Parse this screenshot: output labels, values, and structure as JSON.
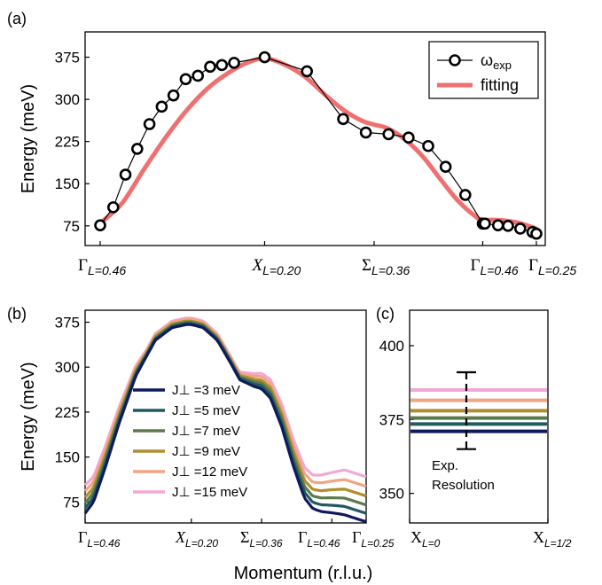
{
  "chart_data": [
    {
      "panel_label": "(a)",
      "type": "line",
      "ylabel": "Energy (meV)",
      "ylim": [
        40,
        420
      ],
      "yticks": [
        75,
        150,
        225,
        300,
        375
      ],
      "x_range": [
        0,
        1
      ],
      "xtick_labels": [
        {
          "main": "Γ",
          "sub": "L=0.46",
          "x": 0.0
        },
        {
          "main": "X",
          "sub": "L=0.20",
          "x": 0.377
        },
        {
          "main": "Σ",
          "sub": "L=0.36",
          "x": 0.628
        },
        {
          "main": "Γ",
          "sub": "L=0.46",
          "x": 0.877
        },
        {
          "main": "Γ",
          "sub": "L=0.25",
          "x": 1.0
        }
      ],
      "legend": {
        "placement": "top-right",
        "entries": [
          {
            "label": "ω",
            "sub": "exp"
          },
          {
            "label": "fitting"
          }
        ]
      },
      "series": [
        {
          "name": "ω_exp",
          "style": "line-with-open-circles",
          "color": "#000000",
          "x": [
            0.0,
            0.03,
            0.058,
            0.085,
            0.113,
            0.141,
            0.168,
            0.196,
            0.224,
            0.252,
            0.279,
            0.307,
            0.377,
            0.474,
            0.557,
            0.609,
            0.661,
            0.707,
            0.752,
            0.792,
            0.837,
            0.877,
            0.882,
            0.912,
            0.935,
            0.963,
            0.991,
            1.0
          ],
          "values": [
            76,
            108,
            166,
            212,
            256,
            287,
            307,
            336,
            342,
            358,
            361,
            365,
            375,
            350,
            265,
            241,
            238,
            232,
            217,
            180,
            130,
            79,
            79,
            76,
            75,
            70,
            64,
            61
          ]
        },
        {
          "name": "fitting",
          "style": "thick-line",
          "color": "#f07070",
          "x": [
            0.0,
            0.05,
            0.1,
            0.15,
            0.2,
            0.25,
            0.3,
            0.34,
            0.377,
            0.42,
            0.47,
            0.52,
            0.56,
            0.6,
            0.628,
            0.66,
            0.7,
            0.74,
            0.78,
            0.82,
            0.86,
            0.877,
            0.92,
            0.96,
            1.0
          ],
          "values": [
            80,
            115,
            175,
            232,
            282,
            322,
            350,
            366,
            373,
            363,
            340,
            305,
            280,
            262,
            255,
            248,
            228,
            198,
            158,
            120,
            92,
            86,
            85,
            80,
            70
          ]
        }
      ]
    },
    {
      "panel_label": "(b)",
      "type": "line",
      "ylabel": "Energy (meV)",
      "xlabel": "Momentum (r.l.u.)",
      "ylim": [
        40,
        395
      ],
      "yticks": [
        75,
        150,
        225,
        300,
        375
      ],
      "x_range": [
        0,
        1
      ],
      "xtick_labels": [
        {
          "main": "Γ",
          "sub": "L=0.46",
          "x": 0.0
        },
        {
          "main": "X",
          "sub": "L=0.20",
          "x": 0.378
        },
        {
          "main": "Σ",
          "sub": "L=0.36",
          "x": 0.628
        },
        {
          "main": "Γ",
          "sub": "L=0.46",
          "x": 0.878
        },
        {
          "main": "Γ",
          "sub": "L=0.25",
          "x": 1.0
        }
      ],
      "legend": {
        "placement": "lower-left"
      },
      "base_curve": {
        "x": [
          0.0,
          0.03,
          0.07,
          0.12,
          0.18,
          0.25,
          0.31,
          0.36,
          0.378,
          0.42,
          0.47,
          0.52,
          0.55,
          0.6,
          0.628,
          0.66,
          0.7,
          0.74,
          0.78,
          0.81,
          0.84,
          0.878,
          0.92,
          0.96,
          1.0
        ],
        "values": [
          56,
          75,
          130,
          205,
          285,
          345,
          366,
          371,
          371,
          366,
          345,
          305,
          279,
          268,
          264,
          248,
          200,
          136,
          82,
          64,
          59,
          57,
          54,
          48,
          42
        ]
      },
      "series": [
        {
          "name": "J⊥ =3 meV",
          "color": "#0e1a5c",
          "offset": 0,
          "tail_extra": 0
        },
        {
          "name": "J⊥ =5 meV",
          "color": "#1f5a5e",
          "offset": 2,
          "tail_extra": 12
        },
        {
          "name": "J⊥ =7 meV",
          "color": "#5d7a4c",
          "offset": 4,
          "tail_extra": 24
        },
        {
          "name": "J⊥ =9 meV",
          "color": "#b08e2c",
          "offset": 6,
          "tail_extra": 37
        },
        {
          "name": "J⊥ =12 meV",
          "color": "#f0a585",
          "offset": 9,
          "tail_extra": 50
        },
        {
          "name": "J⊥ =15 meV",
          "color": "#f2a8d6",
          "offset": 11,
          "tail_extra": 64
        }
      ]
    },
    {
      "panel_label": "(c)",
      "type": "line",
      "ylim": [
        340,
        412
      ],
      "yticks": [
        350,
        375,
        400
      ],
      "xtick_labels": [
        {
          "main": "X",
          "sub": "L=0",
          "x": 0.0
        },
        {
          "main": "X",
          "sub": "L=1/2",
          "x": 1.0
        }
      ],
      "series": [
        {
          "color": "#0e1a5c",
          "value": 371
        },
        {
          "color": "#1f5a5e",
          "value": 373.5
        },
        {
          "color": "#5d7a4c",
          "value": 375.5
        },
        {
          "color": "#b08e2c",
          "value": 378
        },
        {
          "color": "#f0a585",
          "value": 381.5
        },
        {
          "color": "#f2a8d6",
          "value": 385
        }
      ],
      "annotation": {
        "text_line1": "Exp.",
        "text_line2": "Resolution",
        "resolution_center": 378,
        "resolution_low": 365,
        "resolution_high": 391
      }
    }
  ]
}
